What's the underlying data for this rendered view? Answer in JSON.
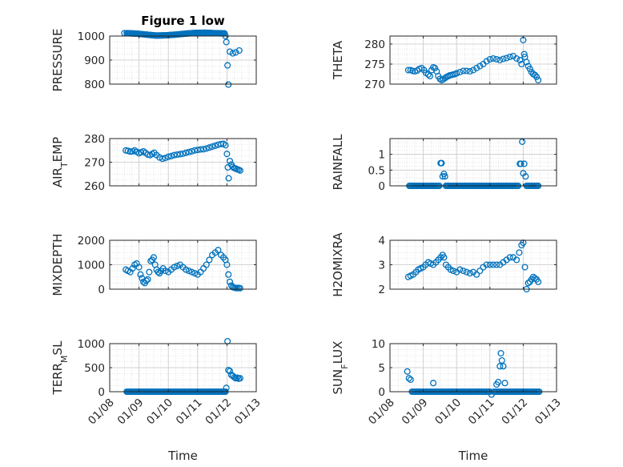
{
  "figure_title": "Figure 1 low",
  "colors": {
    "marker": "#0072BD",
    "axis": "#262626",
    "grid": "#dcdcdc",
    "background": "#ffffff"
  },
  "chart_data": [
    {
      "type": "scatter",
      "id": "pressure",
      "title": "Figure 1 low",
      "xlabel": "",
      "ylabel": "PRESSURE",
      "xlim": [
        "01/08",
        "01/13"
      ],
      "xticks": [],
      "ylim": [
        800,
        1000
      ],
      "yticks": [
        800,
        900,
        1000
      ],
      "ytick_labels": [
        "800",
        "900",
        "1000"
      ],
      "grid": true,
      "minor_grid": true,
      "series": [
        {
          "x": [
            8.5,
            11.95,
            11.98,
            12.02,
            12.05,
            12.1,
            12.2,
            12.3,
            12.42
          ],
          "y": [
            1012,
            1000,
            975,
            878,
            798,
            935,
            928,
            932,
            940
          ],
          "segments": [
            {
              "from": 8.58,
              "to": 11.92,
              "values": [
                1012,
                1010,
                1006,
                1002,
                1003,
                1006,
                1010,
                1013,
                1014,
                1012,
                1011
              ]
            }
          ]
        }
      ]
    },
    {
      "type": "scatter",
      "id": "theta",
      "title": "",
      "xlabel": "",
      "ylabel": "THETA",
      "xlim": [
        "01/08",
        "01/13"
      ],
      "xticks": [],
      "ylim": [
        270,
        282
      ],
      "yticks": [
        270,
        275,
        280
      ],
      "ytick_labels": [
        "270",
        "275",
        "280"
      ],
      "grid": true,
      "minor_grid": true,
      "series": [
        {
          "x": [
            8.55,
            8.62,
            8.68,
            8.75,
            8.82,
            8.88,
            8.95,
            9.02,
            9.08,
            9.15,
            9.2,
            9.25,
            9.3,
            9.35,
            9.4,
            9.45,
            9.5,
            9.55,
            9.6,
            9.65,
            9.7,
            9.75,
            9.8,
            9.85,
            9.9,
            9.95,
            10.0,
            10.1,
            10.2,
            10.3,
            10.4,
            10.5,
            10.6,
            10.7,
            10.8,
            10.9,
            11.0,
            11.1,
            11.2,
            11.3,
            11.4,
            11.5,
            11.6,
            11.7,
            11.8,
            11.9,
            11.95,
            12.0,
            12.03,
            12.05,
            12.1,
            12.15,
            12.2,
            12.25,
            12.3,
            12.35,
            12.4,
            12.45
          ],
          "y": [
            273.5,
            273.5,
            273.3,
            273.2,
            273.4,
            273.8,
            274.0,
            273.5,
            272.8,
            272.4,
            272.0,
            273.5,
            274.2,
            274.0,
            273.2,
            272.0,
            271.3,
            271.0,
            271.2,
            271.5,
            271.8,
            272.0,
            272.2,
            272.3,
            272.4,
            272.5,
            272.7,
            273.0,
            273.3,
            273.3,
            273.2,
            273.5,
            274.0,
            274.5,
            275.0,
            275.7,
            276.2,
            276.4,
            276.2,
            276.0,
            276.3,
            276.5,
            276.8,
            277.0,
            276.4,
            276.0,
            275.0,
            281.0,
            277.5,
            276.8,
            275.5,
            274.5,
            273.8,
            273.0,
            272.5,
            272.3,
            271.8,
            271.0
          ]
        }
      ]
    },
    {
      "type": "scatter",
      "id": "air_temp",
      "title": "",
      "xlabel": "",
      "ylabel": "AIR_TEMP",
      "xlim": [
        "01/08",
        "01/13"
      ],
      "xticks": [],
      "ylim": [
        260,
        280
      ],
      "yticks": [
        260,
        270,
        280
      ],
      "ytick_labels": [
        "260",
        "270",
        "280"
      ],
      "grid": true,
      "minor_grid": true,
      "series": [
        {
          "x": [
            8.55,
            8.62,
            8.7,
            8.78,
            8.85,
            8.92,
            9.0,
            9.07,
            9.15,
            9.22,
            9.3,
            9.38,
            9.45,
            9.52,
            9.6,
            9.7,
            9.8,
            9.9,
            10.0,
            10.1,
            10.2,
            10.3,
            10.4,
            10.5,
            10.6,
            10.7,
            10.8,
            10.9,
            11.0,
            11.1,
            11.2,
            11.3,
            11.4,
            11.5,
            11.6,
            11.7,
            11.8,
            11.88,
            11.95,
            12.0,
            12.03,
            12.06,
            12.1,
            12.15,
            12.2,
            12.25,
            12.3,
            12.35,
            12.4,
            12.45
          ],
          "y": [
            275.0,
            274.8,
            274.5,
            274.6,
            275.0,
            274.4,
            273.8,
            274.2,
            274.6,
            274.0,
            273.2,
            273.0,
            273.5,
            274.0,
            273.0,
            272.0,
            271.5,
            271.8,
            272.3,
            272.6,
            273.0,
            273.2,
            273.4,
            273.6,
            274.0,
            274.3,
            274.6,
            275.0,
            275.2,
            275.4,
            275.5,
            275.8,
            276.2,
            276.6,
            277.0,
            277.4,
            277.7,
            277.8,
            277.2,
            273.5,
            267.8,
            263.2,
            270.5,
            269.0,
            268.0,
            267.5,
            267.3,
            267.0,
            266.8,
            266.5
          ]
        }
      ]
    },
    {
      "type": "scatter",
      "id": "rainfall",
      "title": "",
      "xlabel": "",
      "ylabel": "RAINFALL",
      "xlim": [
        "01/08",
        "01/13"
      ],
      "xticks": [],
      "ylim": [
        0,
        1.5
      ],
      "yticks": [
        0,
        0.5,
        1
      ],
      "ytick_labels": [
        "0",
        "0.5",
        "1"
      ],
      "grid": true,
      "minor_grid": true,
      "series": [
        {
          "x": [
            9.52,
            9.55,
            9.58,
            9.62,
            9.65,
            11.9,
            11.93,
            11.97,
            12.0,
            12.03,
            12.07
          ],
          "y": [
            0.72,
            0.72,
            0.3,
            0.38,
            0.3,
            0.7,
            0.7,
            1.4,
            0.4,
            0.7,
            0.3
          ],
          "segments": [
            {
              "from": 8.58,
              "to": 9.48,
              "values": [
                0,
                0
              ]
            },
            {
              "from": 9.68,
              "to": 11.85,
              "values": [
                0,
                0
              ]
            },
            {
              "from": 12.1,
              "to": 12.45,
              "values": [
                0,
                0
              ]
            }
          ]
        }
      ]
    },
    {
      "type": "scatter",
      "id": "mixdepth",
      "title": "",
      "xlabel": "",
      "ylabel": "MIXDEPTH",
      "xlim": [
        "01/08",
        "01/13"
      ],
      "xticks": [],
      "ylim": [
        0,
        2000
      ],
      "yticks": [
        0,
        1000,
        2000
      ],
      "ytick_labels": [
        "0",
        "1000",
        "2000"
      ],
      "grid": true,
      "minor_grid": true,
      "series": [
        {
          "x": [
            8.55,
            8.62,
            8.7,
            8.78,
            8.85,
            8.92,
            9.0,
            9.05,
            9.1,
            9.15,
            9.2,
            9.25,
            9.3,
            9.35,
            9.4,
            9.45,
            9.5,
            9.55,
            9.6,
            9.65,
            9.7,
            9.75,
            9.82,
            9.9,
            10.0,
            10.1,
            10.2,
            10.3,
            10.4,
            10.5,
            10.6,
            10.7,
            10.8,
            10.9,
            11.0,
            11.1,
            11.2,
            11.3,
            11.4,
            11.5,
            11.6,
            11.7,
            11.8,
            11.88,
            11.95,
            12.0,
            12.05,
            12.1,
            12.15,
            12.2,
            12.25,
            12.3,
            12.35,
            12.4,
            12.45
          ],
          "y": [
            800,
            750,
            700,
            850,
            1000,
            1050,
            900,
            600,
            450,
            300,
            250,
            350,
            400,
            700,
            1150,
            1200,
            1300,
            1000,
            800,
            700,
            650,
            750,
            850,
            750,
            700,
            800,
            900,
            950,
            1000,
            900,
            800,
            750,
            700,
            650,
            600,
            700,
            850,
            1000,
            1200,
            1400,
            1500,
            1600,
            1400,
            1300,
            1200,
            1000,
            600,
            300,
            150,
            80,
            60,
            50,
            40,
            50,
            40
          ]
        }
      ]
    },
    {
      "type": "scatter",
      "id": "h2omixra",
      "title": "",
      "xlabel": "",
      "ylabel": "H2OMIXRA",
      "xlim": [
        "01/08",
        "01/13"
      ],
      "xticks": [],
      "ylim": [
        2,
        4
      ],
      "yticks": [
        2,
        3,
        4
      ],
      "ytick_labels": [
        "2",
        "3",
        "4"
      ],
      "grid": true,
      "minor_grid": true,
      "series": [
        {
          "x": [
            8.55,
            8.62,
            8.7,
            8.78,
            8.85,
            8.92,
            9.0,
            9.07,
            9.15,
            9.22,
            9.3,
            9.38,
            9.45,
            9.52,
            9.58,
            9.62,
            9.68,
            9.75,
            9.82,
            9.9,
            10.0,
            10.1,
            10.2,
            10.3,
            10.4,
            10.5,
            10.6,
            10.7,
            10.8,
            10.9,
            11.0,
            11.1,
            11.2,
            11.3,
            11.4,
            11.5,
            11.6,
            11.7,
            11.8,
            11.88,
            11.95,
            12.0,
            12.05,
            12.1,
            12.15,
            12.2,
            12.25,
            12.3,
            12.35,
            12.4,
            12.45
          ],
          "y": [
            2.5,
            2.55,
            2.6,
            2.7,
            2.8,
            2.85,
            2.9,
            3.0,
            3.1,
            3.05,
            3.0,
            3.1,
            3.2,
            3.3,
            3.4,
            3.3,
            3.0,
            2.9,
            2.8,
            2.75,
            2.7,
            2.8,
            2.75,
            2.7,
            2.65,
            2.7,
            2.6,
            2.75,
            2.9,
            3.0,
            3.0,
            3.0,
            3.0,
            3.0,
            3.1,
            3.2,
            3.3,
            3.3,
            3.2,
            3.5,
            3.8,
            3.9,
            2.9,
            2.0,
            2.25,
            2.3,
            2.4,
            2.5,
            2.45,
            2.4,
            2.3
          ]
        }
      ]
    },
    {
      "type": "scatter",
      "id": "terr_msl",
      "title": "",
      "xlabel": "Time",
      "ylabel": "TERR_MSL",
      "xlim": [
        "01/08",
        "01/13"
      ],
      "xticks": [
        "01/08",
        "01/09",
        "01/10",
        "01/11",
        "01/12",
        "01/13"
      ],
      "ylim": [
        0,
        1000
      ],
      "yticks": [
        0,
        500,
        1000
      ],
      "ytick_labels": [
        "0",
        "500",
        "1000"
      ],
      "grid": true,
      "minor_grid": true,
      "series": [
        {
          "x": [
            11.98,
            12.02,
            12.05,
            12.1,
            12.15,
            12.2,
            12.25,
            12.3,
            12.35,
            12.4,
            12.45
          ],
          "y": [
            80,
            1050,
            450,
            430,
            350,
            330,
            300,
            280,
            290,
            270,
            280
          ],
          "segments": [
            {
              "from": 8.58,
              "to": 11.95,
              "values": [
                0,
                0
              ]
            }
          ]
        }
      ]
    },
    {
      "type": "scatter",
      "id": "sun_flux",
      "title": "",
      "xlabel": "Time",
      "ylabel": "SUN_FLUX",
      "xlim": [
        "01/08",
        "01/13"
      ],
      "xticks": [
        "01/08",
        "01/09",
        "01/10",
        "01/11",
        "01/12",
        "01/13"
      ],
      "ylim": [
        0,
        10
      ],
      "yticks": [
        0,
        5,
        10
      ],
      "ytick_labels": [
        "0",
        "5",
        "10"
      ],
      "grid": true,
      "minor_grid": true,
      "series": [
        {
          "x": [
            8.52,
            8.57,
            8.62,
            9.3,
            11.05,
            11.2,
            11.25,
            11.3,
            11.33,
            11.36,
            11.4,
            11.45
          ],
          "y": [
            4.2,
            2.8,
            2.5,
            1.8,
            -0.6,
            1.5,
            2.0,
            5.3,
            8.0,
            6.5,
            5.3,
            1.8
          ],
          "segments": [
            {
              "from": 8.66,
              "to": 11.0,
              "values": [
                0,
                0
              ]
            },
            {
              "from": 11.12,
              "to": 12.48,
              "values": [
                0,
                0
              ]
            }
          ]
        }
      ]
    }
  ]
}
